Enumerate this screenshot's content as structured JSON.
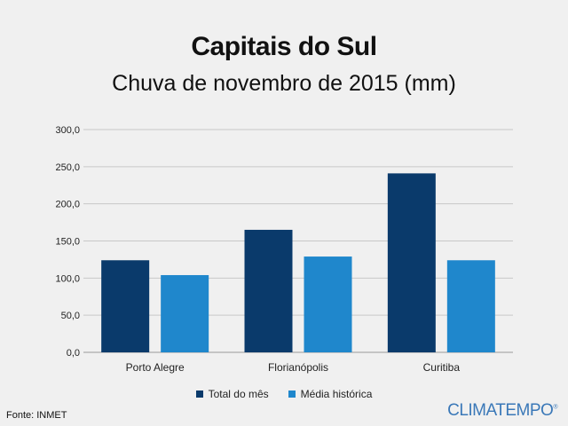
{
  "title": "Capitais do Sul",
  "subtitle": "Chuva de novembro de 2015 (mm)",
  "source": "Fonte: INMET",
  "brand": "CLIMATEMPO",
  "brand_mark": "®",
  "colors": {
    "total": "#0a3a6b",
    "media": "#1f87cc",
    "grid": "#c8c8c8",
    "background": "#f0f0f0",
    "brand": "#3a78b8"
  },
  "chart_data": {
    "type": "bar",
    "title": "Capitais do Sul",
    "subtitle": "Chuva de novembro de 2015 (mm)",
    "categories": [
      "Porto Alegre",
      "Florianópolis",
      "Curitiba"
    ],
    "series": [
      {
        "name": "Total do mês",
        "values": [
          124,
          165,
          241
        ]
      },
      {
        "name": "Média histórica",
        "values": [
          104,
          129,
          124
        ]
      }
    ],
    "ylim": [
      0,
      300
    ],
    "yticks": [
      "0,0",
      "50,0",
      "100,0",
      "150,0",
      "200,0",
      "250,0",
      "300,0"
    ],
    "ytick_values": [
      0,
      50,
      100,
      150,
      200,
      250,
      300
    ],
    "grid": true,
    "legend_position": "bottom",
    "xlabel": "",
    "ylabel": ""
  }
}
